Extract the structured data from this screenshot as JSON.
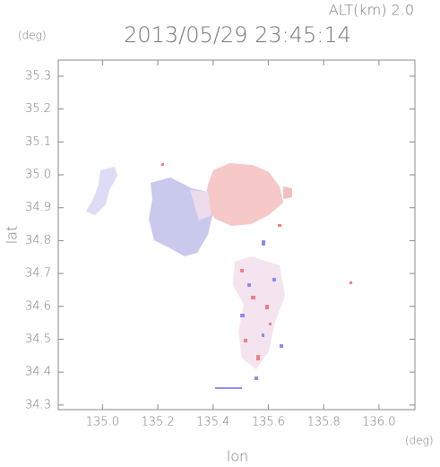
{
  "chart_data": {
    "type": "map",
    "title": "2013/05/29 23:45:14",
    "altitude_label": "ALT(km) 2.0",
    "x_label": "lon",
    "y_label": "lat",
    "x_unit": "(deg)",
    "y_unit": "(deg)",
    "xlim": [
      134.84,
      136.13
    ],
    "ylim": [
      34.286,
      35.349
    ],
    "xticks": [
      {
        "value": 135,
        "label": "135.0"
      },
      135.2,
      135.4,
      135.6,
      135.8,
      {
        "value": 136,
        "label": "136.0"
      }
    ],
    "yticks": [
      34.3,
      34.4,
      34.5,
      34.6,
      34.7,
      34.8,
      34.9,
      {
        "value": 35,
        "label": "35.0"
      },
      35.1,
      35.2,
      35.3
    ]
  }
}
